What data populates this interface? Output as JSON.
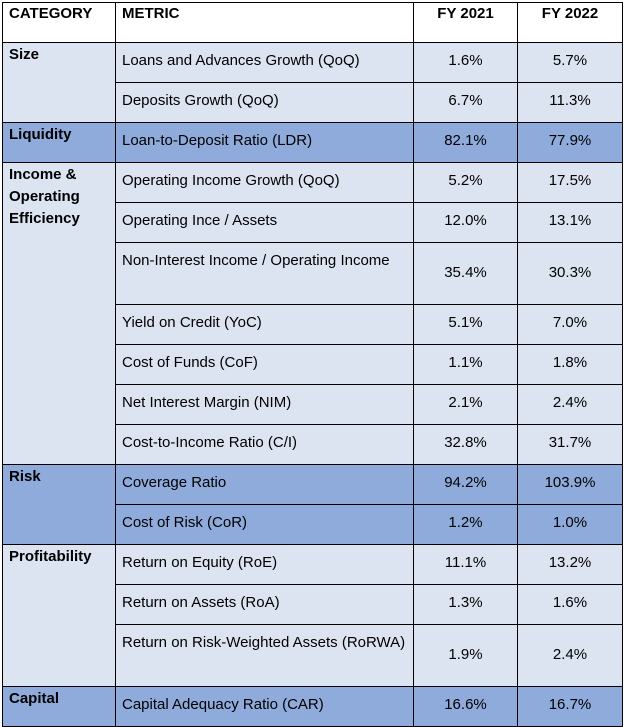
{
  "header": {
    "category": "CATEGORY",
    "metric": "METRIC",
    "fy2021": "FY 2021",
    "fy2022": "FY 2022"
  },
  "rows": [
    {
      "category": "Size",
      "metric": "Loans and Advances Growth (QoQ)",
      "fy2021": "1.6%",
      "fy2022": "5.7%",
      "shade": "light"
    },
    {
      "metric": "Deposits Growth (QoQ)",
      "fy2021": "6.7%",
      "fy2022": "11.3%",
      "shade": "light"
    },
    {
      "category": "Liquidity",
      "metric": "Loan-to-Deposit Ratio (LDR)",
      "fy2021": "82.1%",
      "fy2022": "77.9%",
      "shade": "dark"
    },
    {
      "category": "Income & Operating Efficiency",
      "metric": "Operating Income Growth (QoQ)",
      "fy2021": "5.2%",
      "fy2022": "17.5%",
      "shade": "light"
    },
    {
      "metric": "Operating Ince / Assets",
      "fy2021": "12.0%",
      "fy2022": "13.1%",
      "shade": "light"
    },
    {
      "metric": "Non-Interest Income / Operating Income",
      "fy2021": "35.4%",
      "fy2022": "30.3%",
      "shade": "light"
    },
    {
      "metric": "Yield on Credit (YoC)",
      "fy2021": "5.1%",
      "fy2022": "7.0%",
      "shade": "light"
    },
    {
      "metric": "Cost of Funds (CoF)",
      "fy2021": "1.1%",
      "fy2022": "1.8%",
      "shade": "light"
    },
    {
      "metric": "Net Interest Margin (NIM)",
      "fy2021": "2.1%",
      "fy2022": "2.4%",
      "shade": "light"
    },
    {
      "metric": "Cost-to-Income Ratio (C/I)",
      "fy2021": "32.8%",
      "fy2022": "31.7%",
      "shade": "light"
    },
    {
      "category": "Risk",
      "metric": "Coverage Ratio",
      "fy2021": "94.2%",
      "fy2022": "103.9%",
      "shade": "dark"
    },
    {
      "metric": "Cost of Risk (CoR)",
      "fy2021": "1.2%",
      "fy2022": "1.0%",
      "shade": "dark"
    },
    {
      "category": "Profitability",
      "metric": "Return on Equity (RoE)",
      "fy2021": "11.1%",
      "fy2022": "13.2%",
      "shade": "light"
    },
    {
      "metric": "Return on Assets (RoA)",
      "fy2021": "1.3%",
      "fy2022": "1.6%",
      "shade": "light"
    },
    {
      "metric": "Return on Risk-Weighted Assets (RoRWA)",
      "fy2021": "1.9%",
      "fy2022": "2.4%",
      "shade": "light"
    },
    {
      "category": "Capital",
      "metric": "Capital Adequacy Ratio (CAR)",
      "fy2021": "16.6%",
      "fy2022": "16.7%",
      "shade": "dark"
    }
  ]
}
